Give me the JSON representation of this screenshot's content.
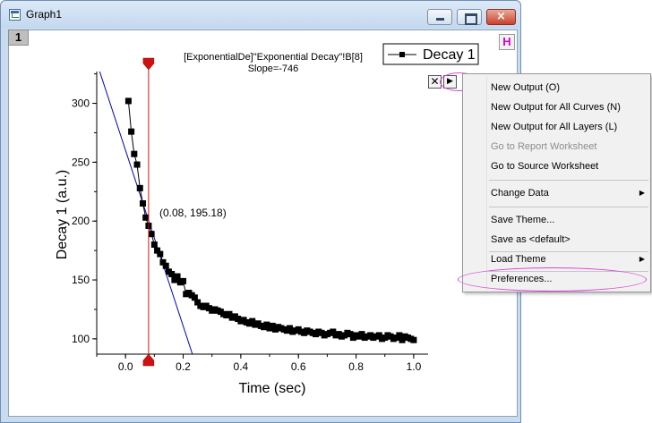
{
  "window": {
    "title": "Graph1",
    "layer_label": "1",
    "h_button": "H"
  },
  "graph": {
    "annotation_line1": "[ExponentialDe]\"Exponential Decay\"!B[8]",
    "annotation_line2": "Slope=-746",
    "legend_label": "Decay 1",
    "point_label": "(0.08, 195.18)",
    "cursor_x": 0.08,
    "cursor_y": 195.18,
    "line_color": "#0000c0",
    "cursor_color": "#d01010"
  },
  "chart_data": {
    "type": "scatter",
    "xlabel": "Time (sec)",
    "ylabel": "Decay 1 (a.u.)",
    "xlim": [
      -0.1,
      1.05
    ],
    "ylim": [
      87,
      327
    ],
    "xticks": [
      "0.0",
      "0.2",
      "0.4",
      "0.6",
      "0.8",
      "1.0"
    ],
    "xtick_values": [
      0.0,
      0.2,
      0.4,
      0.6,
      0.8,
      1.0
    ],
    "yticks": [
      "100",
      "150",
      "200",
      "250",
      "300"
    ],
    "ytick_values": [
      100,
      150,
      200,
      250,
      300
    ],
    "series": [
      {
        "name": "Decay 1",
        "x": [
          0.01,
          0.02,
          0.03,
          0.04,
          0.05,
          0.06,
          0.07,
          0.08,
          0.09,
          0.1,
          0.11,
          0.12,
          0.13,
          0.14,
          0.15,
          0.16,
          0.17,
          0.18,
          0.19,
          0.2,
          0.21,
          0.22,
          0.23,
          0.24,
          0.25,
          0.26,
          0.27,
          0.28,
          0.29,
          0.3,
          0.31,
          0.32,
          0.33,
          0.34,
          0.35,
          0.36,
          0.37,
          0.38,
          0.39,
          0.4,
          0.41,
          0.42,
          0.43,
          0.44,
          0.45,
          0.46,
          0.47,
          0.48,
          0.49,
          0.5,
          0.51,
          0.52,
          0.53,
          0.54,
          0.55,
          0.56,
          0.57,
          0.58,
          0.59,
          0.6,
          0.61,
          0.62,
          0.63,
          0.64,
          0.65,
          0.66,
          0.67,
          0.68,
          0.69,
          0.7,
          0.71,
          0.72,
          0.73,
          0.74,
          0.75,
          0.76,
          0.77,
          0.78,
          0.79,
          0.8,
          0.81,
          0.82,
          0.83,
          0.84,
          0.85,
          0.86,
          0.87,
          0.88,
          0.89,
          0.9,
          0.91,
          0.92,
          0.93,
          0.94,
          0.95,
          0.96,
          0.97,
          0.98,
          0.99,
          1.0
        ],
        "y": [
          302,
          276,
          257,
          248,
          228,
          215,
          203,
          196,
          189,
          180,
          175,
          172,
          165,
          162,
          157,
          155,
          150,
          153,
          148,
          149,
          138,
          139,
          137,
          135,
          131,
          128,
          127,
          128,
          126,
          124,
          125,
          124,
          123,
          121,
          120,
          121,
          118,
          119,
          117,
          115,
          116,
          114,
          113,
          115,
          112,
          113,
          111,
          110,
          112,
          109,
          111,
          108,
          110,
          109,
          108,
          107,
          109,
          106,
          107,
          108,
          106,
          105,
          107,
          106,
          105,
          104,
          106,
          105,
          103,
          104,
          105,
          106,
          103,
          104,
          102,
          103,
          105,
          104,
          101,
          103,
          102,
          104,
          101,
          102,
          103,
          101,
          102,
          103,
          100,
          101,
          103,
          102,
          100,
          101,
          103,
          99,
          102,
          101,
          100,
          99
        ]
      },
      {
        "name": "",
        "type": "line",
        "x": [
          -0.1,
          0.25
        ],
        "y": [
          334.7,
          73.6
        ]
      }
    ]
  },
  "mini_toolbar": {
    "close_glyph": "✕",
    "arrow_glyph": "▶"
  },
  "menu": {
    "items": [
      {
        "label": "New Output (O)",
        "disabled": false
      },
      {
        "label": "New Output for All Curves (N)",
        "disabled": false
      },
      {
        "label": "New Output for All Layers (L)",
        "disabled": false
      },
      {
        "label": "Go to Report Worksheet",
        "disabled": true
      },
      {
        "label": "Go to Source Worksheet",
        "disabled": false
      },
      {
        "label": "Change Data",
        "disabled": false,
        "submenu": true
      },
      {
        "label": "Save Theme...",
        "disabled": false
      },
      {
        "label": "Save as <default>",
        "disabled": false
      },
      {
        "label": "Load Theme",
        "disabled": false,
        "submenu": true
      },
      {
        "label": "Preferences...",
        "disabled": false
      }
    ]
  }
}
